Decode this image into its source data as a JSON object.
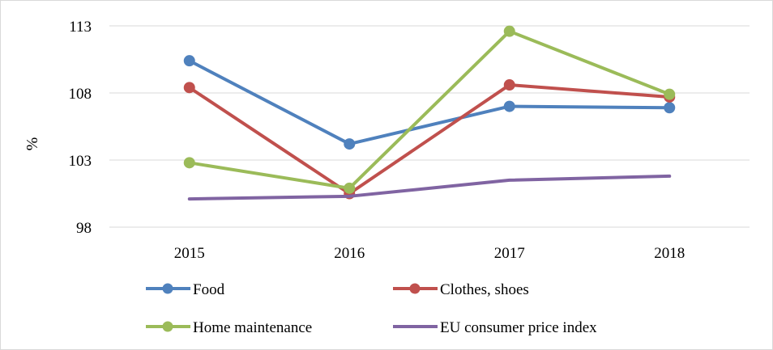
{
  "chart_data": {
    "type": "line",
    "title": "",
    "xlabel": "",
    "ylabel": "%",
    "categories": [
      "2015",
      "2016",
      "2017",
      "2018"
    ],
    "ylim": [
      98,
      113
    ],
    "yticks": [
      98,
      103,
      108,
      113
    ],
    "grid": "horizontal",
    "legend_position": "bottom",
    "series": [
      {
        "name": "Food",
        "values": [
          110.4,
          104.2,
          107.0,
          106.9
        ],
        "color": "#4f81bd",
        "markers": true
      },
      {
        "name": "Clothes, shoes",
        "values": [
          108.4,
          100.5,
          108.6,
          107.7
        ],
        "color": "#c0504d",
        "markers": true
      },
      {
        "name": "Home maintenance",
        "values": [
          102.8,
          100.9,
          112.6,
          107.9
        ],
        "color": "#9bbb59",
        "markers": true
      },
      {
        "name": "EU consumer price index",
        "values": [
          100.1,
          100.3,
          101.5,
          101.8
        ],
        "color": "#8064a2",
        "markers": false
      }
    ]
  }
}
